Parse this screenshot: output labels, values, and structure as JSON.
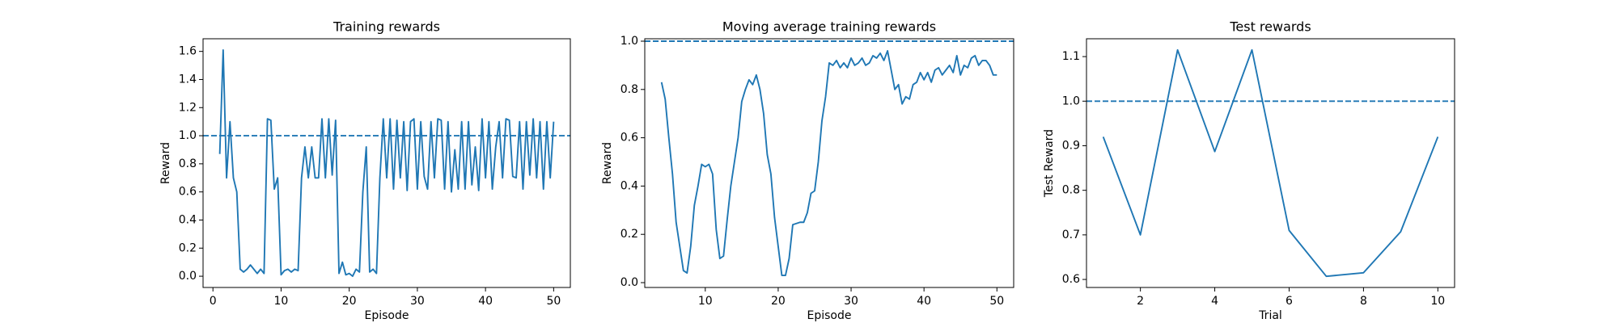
{
  "chart_data": [
    {
      "type": "line",
      "title": "Training rewards",
      "xlabel": "Episode",
      "ylabel": "Reward",
      "color": "#1f77b4",
      "threshold": 1.0,
      "x": [
        1,
        1.5,
        2,
        2.5,
        3,
        3.5,
        4,
        4.5,
        5,
        5.5,
        6,
        6.5,
        7,
        7.5,
        8,
        8.5,
        9,
        9.5,
        10,
        10.5,
        11,
        11.5,
        12,
        12.5,
        13,
        13.5,
        14,
        14.5,
        15,
        15.5,
        16,
        16.5,
        17,
        17.5,
        18,
        18.5,
        19,
        19.5,
        20,
        20.5,
        21,
        21.5,
        22,
        22.5,
        23,
        23.5,
        24,
        24.5,
        25,
        25.5,
        26,
        26.5,
        27,
        27.5,
        28,
        28.5,
        29,
        29.5,
        30,
        30.5,
        31,
        31.5,
        32,
        32.5,
        33,
        33.5,
        34,
        34.5,
        35,
        35.5,
        36,
        36.5,
        37,
        37.5,
        38,
        38.5,
        39,
        39.5,
        40,
        40.5,
        41,
        41.5,
        42,
        42.5,
        43,
        43.5,
        44,
        44.5,
        45,
        45.5,
        46,
        46.5,
        47,
        47.5,
        48,
        48.5,
        49,
        49.5,
        50
      ],
      "values": [
        0.87,
        1.61,
        0.7,
        1.1,
        0.7,
        0.6,
        0.05,
        0.03,
        0.05,
        0.08,
        0.05,
        0.02,
        0.05,
        0.02,
        1.12,
        1.11,
        0.62,
        0.7,
        0.01,
        0.04,
        0.05,
        0.03,
        0.05,
        0.04,
        0.7,
        0.92,
        0.7,
        0.92,
        0.7,
        0.7,
        1.12,
        0.7,
        1.12,
        0.72,
        1.11,
        0.02,
        0.1,
        0.01,
        0.02,
        0.0,
        0.05,
        0.03,
        0.6,
        0.92,
        0.03,
        0.05,
        0.02,
        0.7,
        1.12,
        0.7,
        1.12,
        0.62,
        1.11,
        0.7,
        1.1,
        0.61,
        1.1,
        1.12,
        0.62,
        1.1,
        0.71,
        0.62,
        1.1,
        0.7,
        1.12,
        1.11,
        0.62,
        1.1,
        0.6,
        0.9,
        0.62,
        1.1,
        0.62,
        1.1,
        0.65,
        0.92,
        0.61,
        1.12,
        0.7,
        1.1,
        0.62,
        0.92,
        1.1,
        0.7,
        1.12,
        1.11,
        0.71,
        0.7,
        1.1,
        0.62,
        1.1,
        0.72,
        1.12,
        0.7,
        1.1,
        0.62,
        1.1,
        0.7,
        1.1
      ],
      "xlim": [
        -1.45,
        52.45
      ],
      "ylim": [
        -0.08,
        1.69
      ],
      "xticks": [
        0,
        10,
        20,
        30,
        40,
        50
      ],
      "yticks": [
        {
          "value": 0,
          "label": "0.0"
        },
        0.2,
        0.4,
        0.6,
        0.8,
        {
          "value": 1,
          "label": "1.0"
        },
        1.2,
        1.4,
        1.6
      ]
    },
    {
      "type": "line",
      "title": "Moving average training rewards",
      "xlabel": "Episode",
      "ylabel": "Reward",
      "color": "#1f77b4",
      "threshold": 1.0,
      "x": [
        4,
        4.5,
        5,
        5.5,
        6,
        6.5,
        7,
        7.5,
        8,
        8.5,
        9,
        9.5,
        10,
        10.5,
        11,
        11.5,
        12,
        12.5,
        13,
        13.5,
        14,
        14.5,
        15,
        15.5,
        16,
        16.5,
        17,
        17.5,
        18,
        18.5,
        19,
        19.5,
        20,
        20.5,
        21,
        21.5,
        22,
        22.5,
        23,
        23.5,
        24,
        24.5,
        25,
        25.5,
        26,
        26.5,
        27,
        27.5,
        28,
        28.5,
        29,
        29.5,
        30,
        30.5,
        31,
        31.5,
        32,
        32.5,
        33,
        33.5,
        34,
        34.5,
        35,
        35.5,
        36,
        36.5,
        37,
        37.5,
        38,
        38.5,
        39,
        39.5,
        40,
        40.5,
        41,
        41.5,
        42,
        42.5,
        43,
        43.5,
        44,
        44.5,
        45,
        45.5,
        46,
        46.5,
        47,
        47.5,
        48,
        48.5,
        49,
        49.5,
        50
      ],
      "values": [
        0.83,
        0.76,
        0.6,
        0.45,
        0.25,
        0.15,
        0.05,
        0.04,
        0.15,
        0.32,
        0.4,
        0.49,
        0.48,
        0.49,
        0.45,
        0.22,
        0.1,
        0.11,
        0.26,
        0.4,
        0.5,
        0.6,
        0.75,
        0.8,
        0.84,
        0.82,
        0.86,
        0.8,
        0.7,
        0.53,
        0.45,
        0.27,
        0.15,
        0.03,
        0.03,
        0.1,
        0.24,
        0.245,
        0.25,
        0.25,
        0.29,
        0.37,
        0.38,
        0.5,
        0.67,
        0.77,
        0.91,
        0.9,
        0.92,
        0.89,
        0.91,
        0.89,
        0.93,
        0.9,
        0.91,
        0.93,
        0.9,
        0.91,
        0.94,
        0.93,
        0.95,
        0.92,
        0.96,
        0.88,
        0.8,
        0.82,
        0.74,
        0.77,
        0.76,
        0.82,
        0.83,
        0.87,
        0.84,
        0.87,
        0.83,
        0.88,
        0.89,
        0.86,
        0.88,
        0.9,
        0.87,
        0.94,
        0.86,
        0.9,
        0.89,
        0.93,
        0.94,
        0.9,
        0.92,
        0.92,
        0.9,
        0.86,
        0.86
      ],
      "xlim": [
        1.7,
        52.3
      ],
      "ylim": [
        -0.02,
        1.01
      ],
      "xticks": [
        10,
        20,
        30,
        40,
        50
      ],
      "yticks": [
        {
          "value": 0,
          "label": "0.0"
        },
        0.2,
        0.4,
        0.6,
        0.8,
        {
          "value": 1,
          "label": "1.0"
        }
      ]
    },
    {
      "type": "line",
      "title": "Test rewards",
      "xlabel": "Trial",
      "ylabel": "Test Reward",
      "color": "#1f77b4",
      "threshold": 1.0,
      "x": [
        1,
        2,
        3,
        4,
        5,
        6,
        7,
        8,
        9,
        10
      ],
      "values": [
        0.92,
        0.7,
        1.115,
        0.887,
        1.115,
        0.71,
        0.607,
        0.615,
        0.707,
        0.92
      ],
      "xlim": [
        0.55,
        10.45
      ],
      "ylim": [
        0.582,
        1.14
      ],
      "xticks": [
        2,
        4,
        6,
        8,
        10
      ],
      "yticks": [
        0.6,
        0.7,
        0.8,
        0.9,
        {
          "value": 1,
          "label": "1.0"
        },
        1.1
      ]
    }
  ]
}
